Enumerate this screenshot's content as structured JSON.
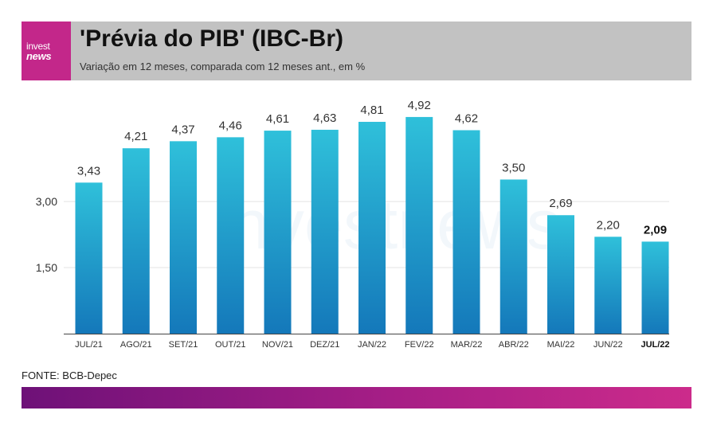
{
  "header": {
    "logo_line1": "invest",
    "logo_line2": "news",
    "title": "'Prévia do PIB' (IBC-Br)",
    "subtitle": "Variação em 12 meses, comparada com 12 meses ant., em %"
  },
  "source": "FONTE: BCB-Depec",
  "watermark": "investnews",
  "colors": {
    "header_bg": "#c2c2c2",
    "logo_bg": "#c3278a",
    "bar_top": "#2fc0da",
    "bar_bottom": "#1478ba",
    "footer_start": "#6e1178",
    "footer_end": "#cc2b8b"
  },
  "chart_data": {
    "type": "bar",
    "categories": [
      "JUL/21",
      "AGO/21",
      "SET/21",
      "OUT/21",
      "NOV/21",
      "DEZ/21",
      "JAN/22",
      "FEV/22",
      "MAR/22",
      "ABR/22",
      "MAI/22",
      "JUN/22",
      "JUL/22"
    ],
    "values": [
      3.43,
      4.21,
      4.37,
      4.46,
      4.61,
      4.63,
      4.81,
      4.92,
      4.62,
      3.5,
      2.69,
      2.2,
      2.09
    ],
    "value_labels": [
      "3,43",
      "4,21",
      "4,37",
      "4,46",
      "4,61",
      "4,63",
      "4,81",
      "4,92",
      "4,62",
      "3,50",
      "2,69",
      "2,20",
      "2,09"
    ],
    "highlight_index": 12,
    "y_ticks": [
      1.5,
      3.0
    ],
    "y_tick_labels": [
      "1,50",
      "3,00"
    ],
    "ylim": [
      0,
      5.5
    ],
    "grid": true,
    "xlabel": "",
    "ylabel": "",
    "title": "'Prévia do PIB' (IBC-Br)"
  }
}
